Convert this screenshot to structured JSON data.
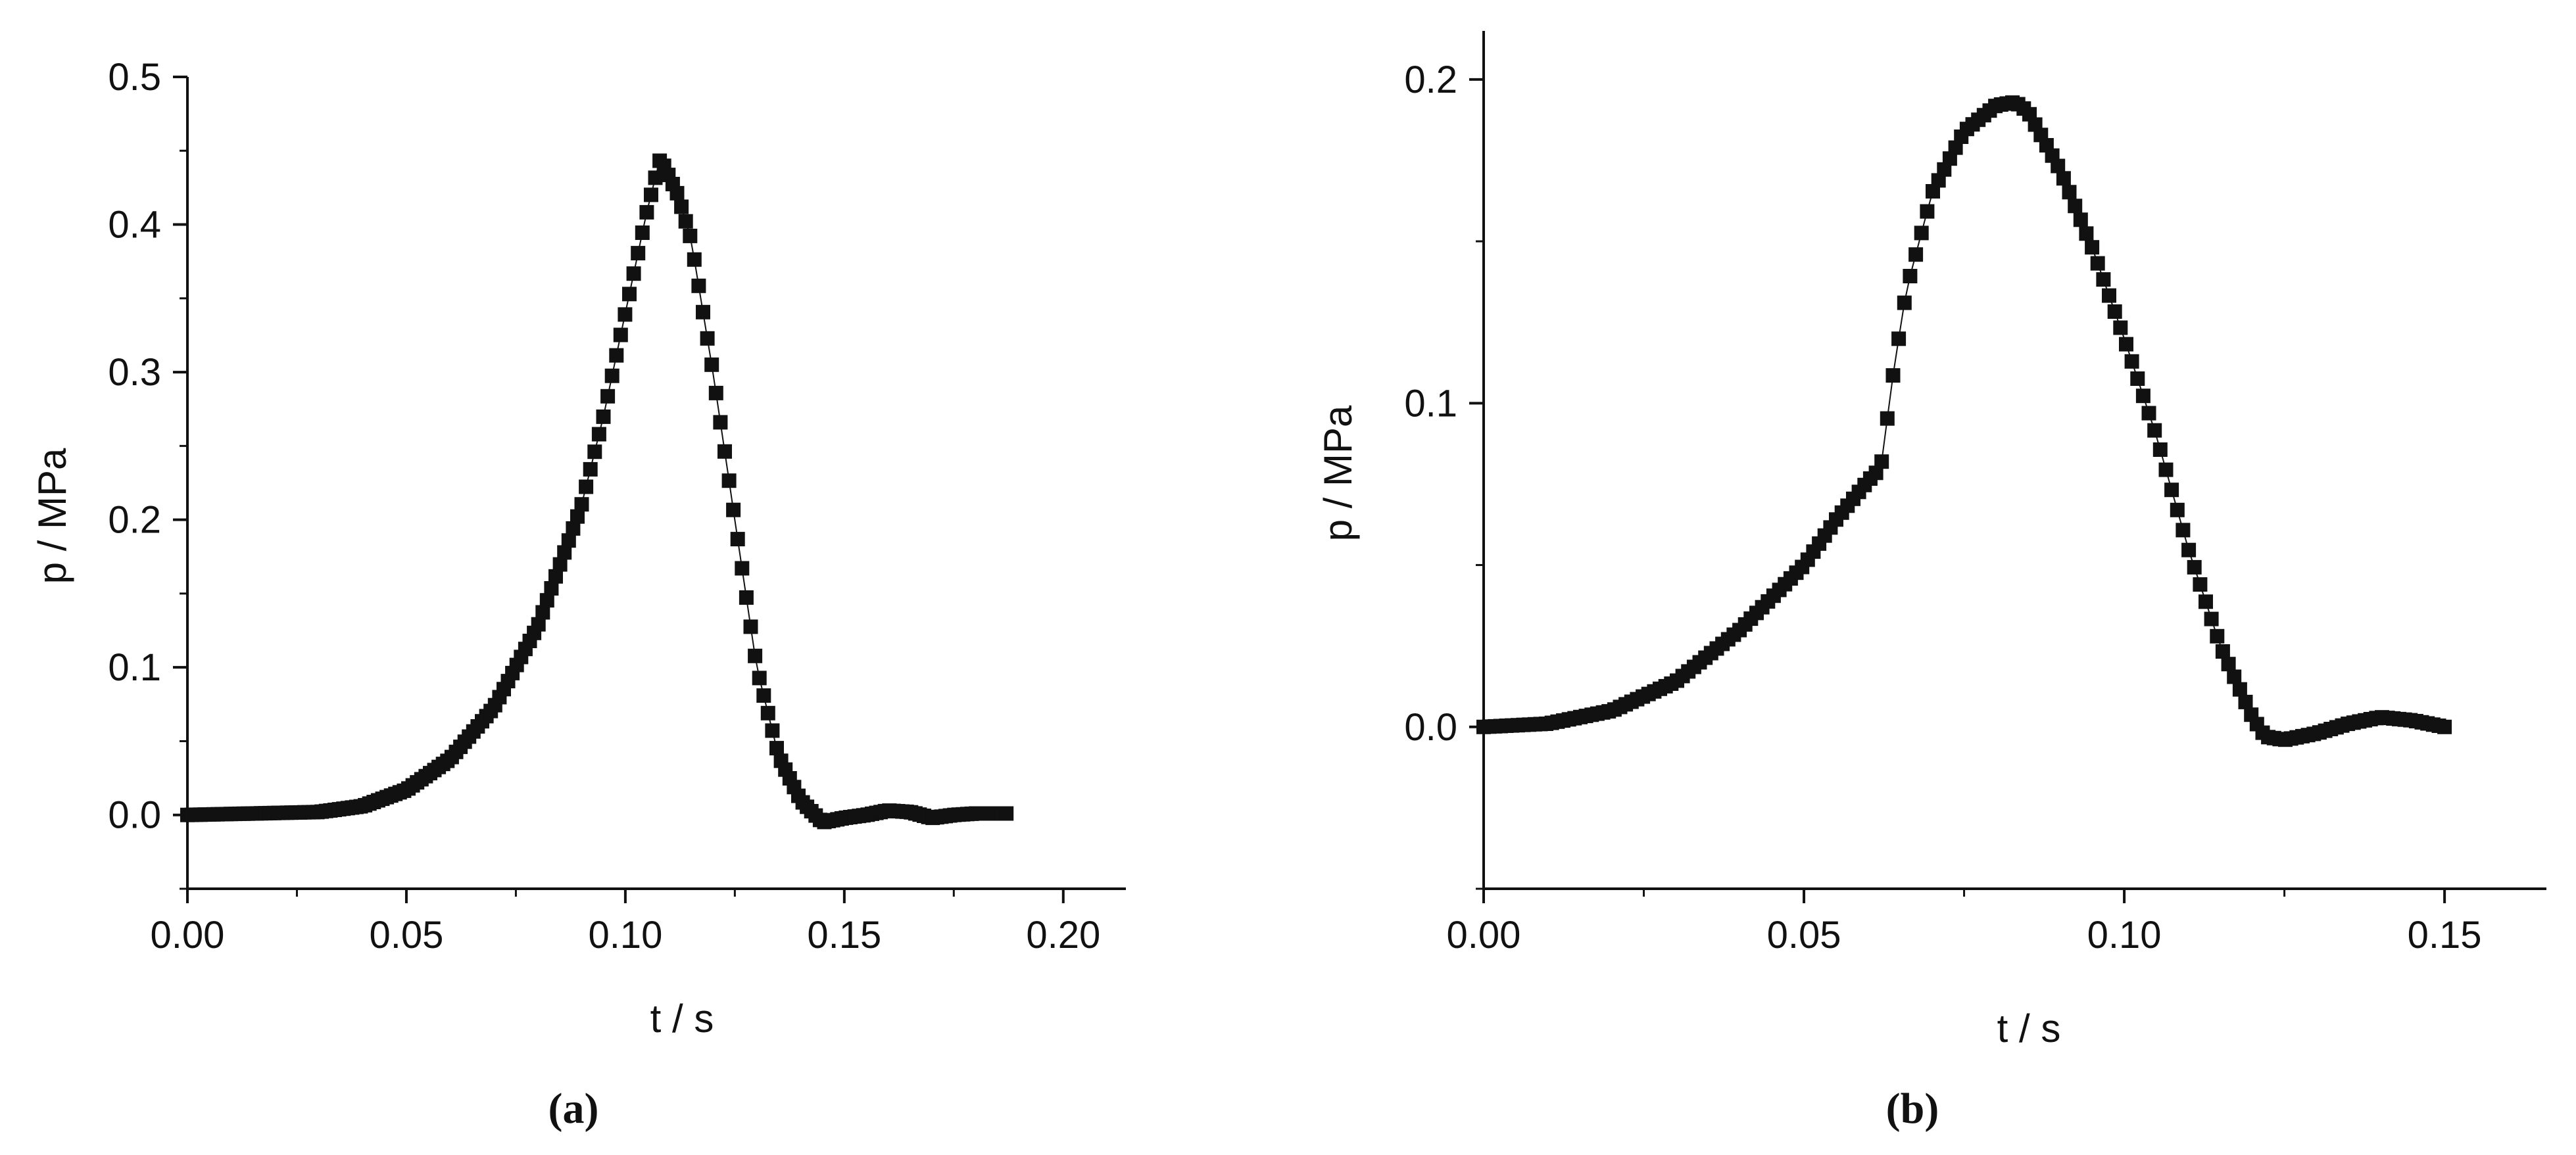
{
  "chart_data": [
    {
      "type": "scatter",
      "panel_label": "(a)",
      "xlabel": "t / s",
      "ylabel": "p / MPa",
      "xlim": [
        0.0,
        0.2143
      ],
      "ylim": [
        -0.05,
        0.5
      ],
      "x_ticks": [
        "0.00",
        "0.05",
        "0.10",
        "0.15",
        "0.20"
      ],
      "y_ticks": [
        "0.0",
        "0.1",
        "0.2",
        "0.3",
        "0.4",
        "0.5"
      ],
      "grid": false,
      "marker": "square",
      "color": "#111111",
      "keypoints": {
        "x": [
          0.0,
          0.03,
          0.04,
          0.05,
          0.06,
          0.07,
          0.08,
          0.09,
          0.095,
          0.1,
          0.105,
          0.108,
          0.112,
          0.115,
          0.12,
          0.125,
          0.13,
          0.135,
          0.14,
          0.145,
          0.15,
          0.155,
          0.16,
          0.165,
          0.17,
          0.175,
          0.18,
          0.187
        ],
        "y": [
          0.0,
          0.002,
          0.006,
          0.017,
          0.038,
          0.073,
          0.128,
          0.21,
          0.27,
          0.34,
          0.41,
          0.445,
          0.42,
          0.39,
          0.3,
          0.2,
          0.1,
          0.04,
          0.01,
          -0.005,
          -0.002,
          0.0,
          0.003,
          0.002,
          -0.002,
          0.0,
          0.001,
          0.001
        ]
      },
      "n_points": 190
    },
    {
      "type": "scatter",
      "panel_label": "(b)",
      "xlabel": "t / s",
      "ylabel": "p / MPa",
      "xlim": [
        0.0,
        0.1659
      ],
      "ylim": [
        -0.05,
        0.215
      ],
      "x_ticks": [
        "0.00",
        "0.05",
        "0.10",
        "0.15"
      ],
      "y_ticks": [
        "0.0",
        "0.1",
        "0.2"
      ],
      "grid": false,
      "marker": "square",
      "color": "#111111",
      "keypoints": {
        "x": [
          0.0,
          0.01,
          0.02,
          0.03,
          0.04,
          0.05,
          0.055,
          0.06,
          0.062,
          0.064,
          0.066,
          0.07,
          0.075,
          0.08,
          0.083,
          0.085,
          0.09,
          0.095,
          0.1,
          0.105,
          0.11,
          0.115,
          0.12,
          0.122,
          0.125,
          0.13,
          0.135,
          0.14,
          0.145,
          0.15
        ],
        "y": [
          0.0,
          0.001,
          0.005,
          0.014,
          0.03,
          0.05,
          0.064,
          0.076,
          0.08,
          0.11,
          0.135,
          0.165,
          0.184,
          0.192,
          0.193,
          0.19,
          0.172,
          0.148,
          0.12,
          0.09,
          0.055,
          0.025,
          0.003,
          -0.003,
          -0.004,
          -0.002,
          0.001,
          0.003,
          0.002,
          0.0
        ]
      },
      "n_points": 170
    }
  ]
}
